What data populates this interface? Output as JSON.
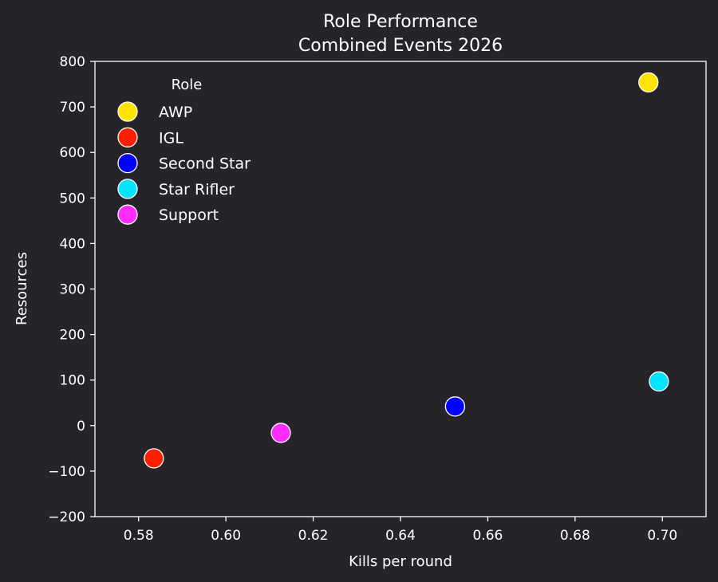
{
  "chart_data": {
    "type": "scatter",
    "title": [
      "Role Performance",
      "Combined Events 2026"
    ],
    "xlabel": "Kills per round",
    "ylabel": "Resources",
    "xlim": [
      0.57,
      0.71
    ],
    "ylim": [
      -200,
      800
    ],
    "xticks": [
      0.58,
      0.6,
      0.62,
      0.64,
      0.66,
      0.68,
      0.7
    ],
    "xtick_labels": [
      "0.58",
      "0.60",
      "0.62",
      "0.64",
      "0.66",
      "0.68",
      "0.70"
    ],
    "yticks": [
      -200,
      -100,
      0,
      100,
      200,
      300,
      400,
      500,
      600,
      700,
      800
    ],
    "ytick_labels": [
      "−200",
      "−100",
      "0",
      "100",
      "200",
      "300",
      "400",
      "500",
      "600",
      "700",
      "800"
    ],
    "grid": false,
    "legend": {
      "title": "Role",
      "position": "top-left"
    },
    "background": "#262428",
    "axis_color": "#ffffff",
    "marker_edge_color": "#ffffff",
    "series": [
      {
        "name": "AWP",
        "color": "#ffe400",
        "points": [
          {
            "x": 0.6968,
            "y": 754
          }
        ]
      },
      {
        "name": "IGL",
        "color": "#ff1e00",
        "points": [
          {
            "x": 0.5835,
            "y": -72
          }
        ]
      },
      {
        "name": "Second Star",
        "color": "#0000ff",
        "points": [
          {
            "x": 0.6525,
            "y": 42
          }
        ]
      },
      {
        "name": "Star Rifler",
        "color": "#00e4ff",
        "points": [
          {
            "x": 0.6992,
            "y": 97
          }
        ]
      },
      {
        "name": "Support",
        "color": "#ff2cff",
        "points": [
          {
            "x": 0.6126,
            "y": -16
          }
        ]
      }
    ]
  }
}
